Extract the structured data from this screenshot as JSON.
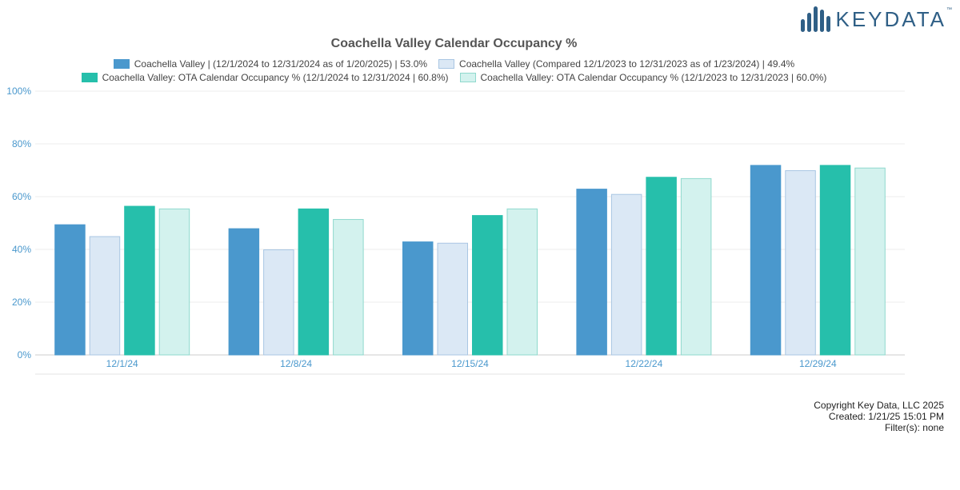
{
  "logo": {
    "text": "KEYDATA",
    "tm": "™"
  },
  "chart_data": {
    "type": "bar",
    "title": "Coachella Valley Calendar Occupancy %",
    "categories": [
      "12/1/24",
      "12/8/24",
      "12/15/24",
      "12/22/24",
      "12/29/24"
    ],
    "series": [
      {
        "name": "Coachella Valley | (12/1/2024 to 12/31/2024 as of 1/20/2025) | 53.0%",
        "color": "#4a98cd",
        "stroke": "#4a98cd",
        "values": [
          49.5,
          48,
          43,
          63,
          72
        ]
      },
      {
        "name": "Coachella Valley (Compared 12/1/2023 to 12/31/2023 as of 1/23/2024) | 49.4%",
        "color": "#dbe8f5",
        "stroke": "#a9c6e3",
        "values": [
          45,
          40,
          42.5,
          61,
          70
        ]
      },
      {
        "name": "Coachella Valley: OTA Calendar Occupancy % (12/1/2024 to 12/31/2024 | 60.8%)",
        "color": "#26bfab",
        "stroke": "#26bfab",
        "values": [
          56.5,
          55.5,
          53,
          67.5,
          72
        ]
      },
      {
        "name": "Coachella Valley: OTA Calendar Occupancy % (12/1/2023 to 12/31/2023 | 60.0%)",
        "color": "#d3f2ee",
        "stroke": "#8fd9cd",
        "values": [
          55.5,
          51.5,
          55.5,
          67,
          71
        ]
      }
    ],
    "xlabel": "",
    "ylabel": "",
    "ylim": [
      0,
      100
    ],
    "yticks": [
      "0%",
      "20%",
      "40%",
      "60%",
      "80%",
      "100%"
    ],
    "grid": true,
    "legend_position": "top"
  },
  "footer": {
    "copyright": "Copyright Key Data, LLC 2025",
    "created": "Created: 1/21/25 15:01 PM",
    "filters": "Filter(s): none"
  }
}
